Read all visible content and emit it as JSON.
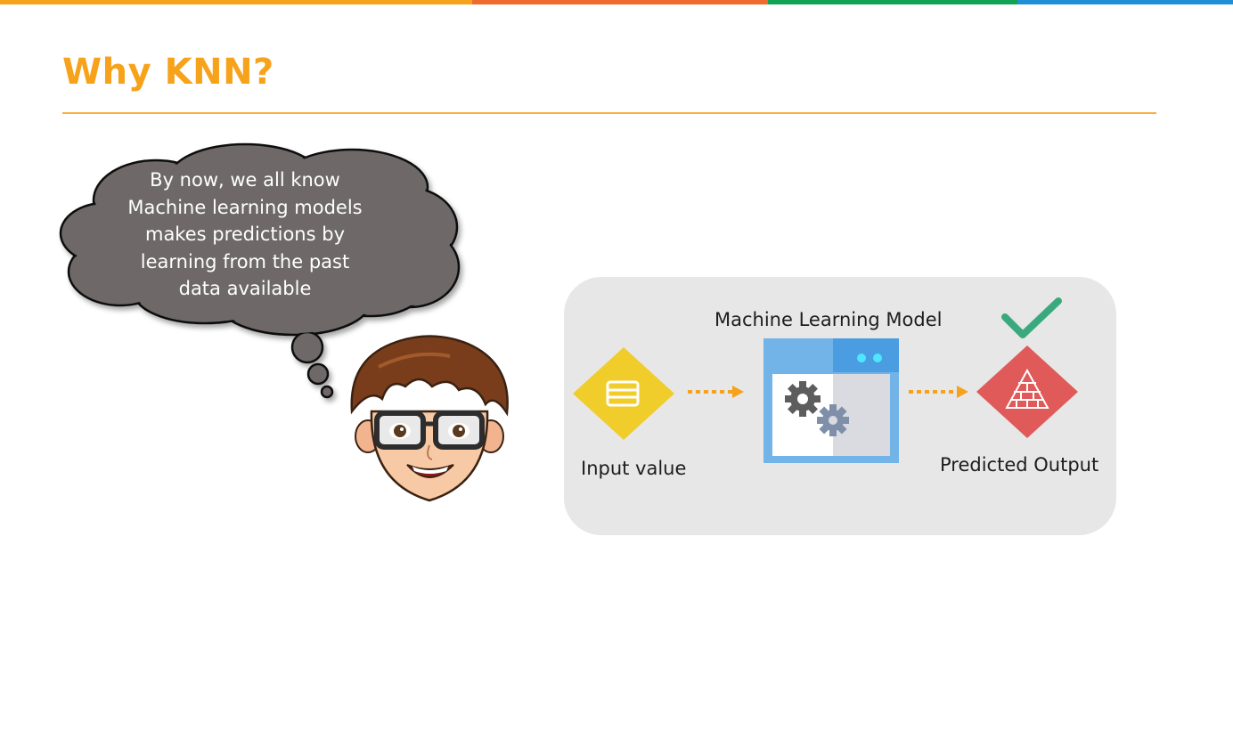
{
  "slide": {
    "title": "Why KNN?",
    "accent_colors": [
      "#f7a21b",
      "#ef6b2d",
      "#12a254",
      "#1f8fd6"
    ]
  },
  "thought_bubble": {
    "lines": [
      "By now, we all know",
      "Machine learning models",
      "makes predictions by",
      "learning from the past",
      "data available"
    ]
  },
  "flow": {
    "input_label": "Input value",
    "model_label": "Machine Learning Model",
    "output_label": "Predicted Output",
    "input_icon": "database-diamond-icon",
    "model_icon": "gears-window-icon",
    "output_icon": "brick-pyramid-diamond-icon",
    "check_icon": "checkmark-icon"
  }
}
